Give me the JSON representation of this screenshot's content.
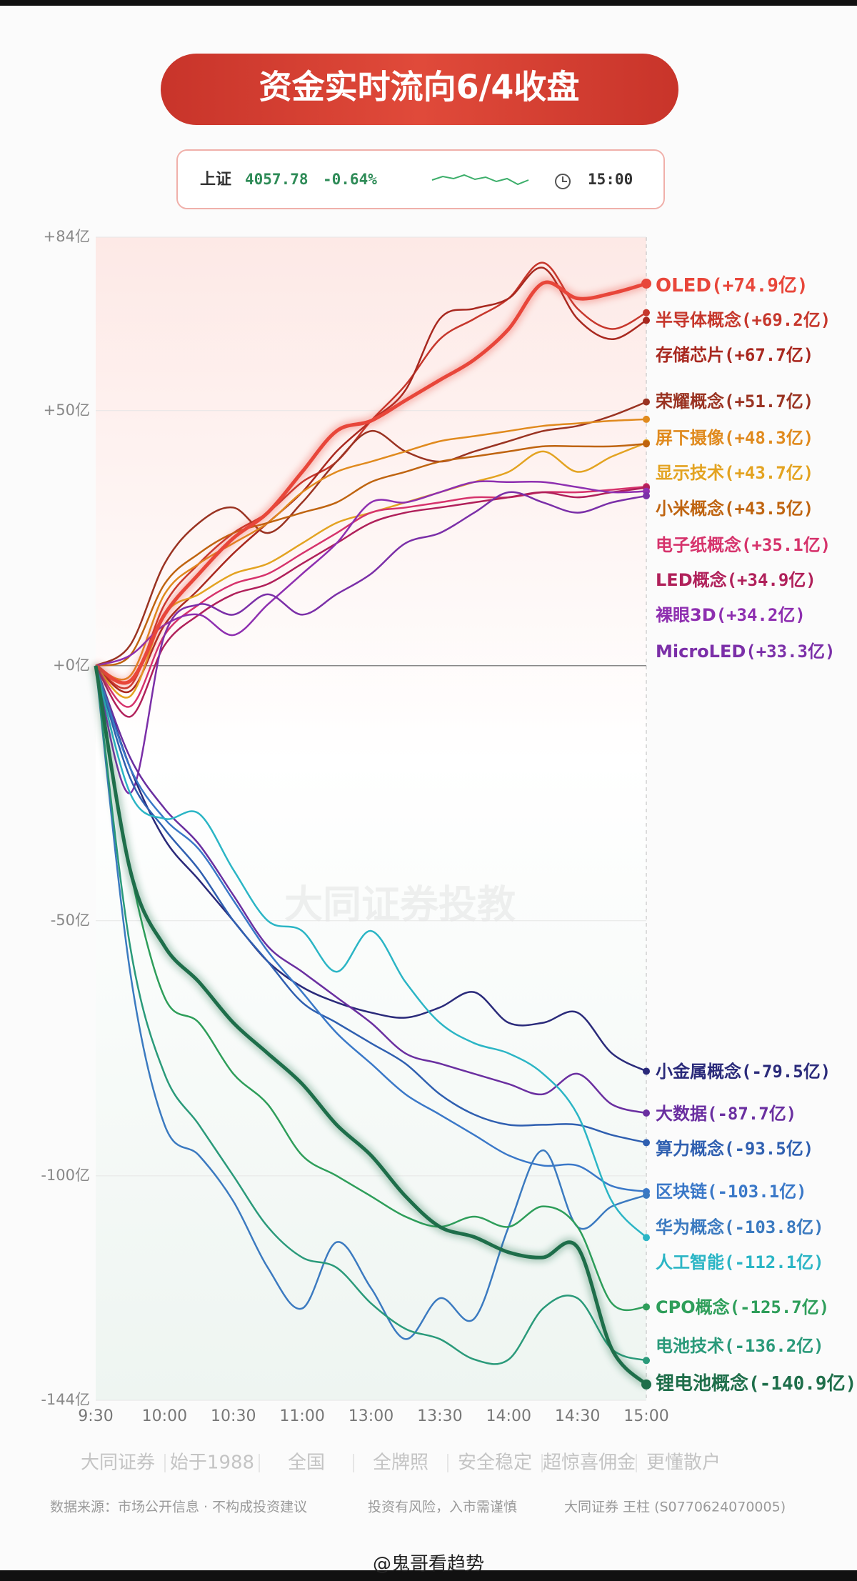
{
  "header": {
    "title": "资金实时流向6/4收盘",
    "index_name": "上证",
    "index_value": "4057.78",
    "index_change": "-0.64%",
    "time": "15:00"
  },
  "chart_data": {
    "type": "line",
    "categories": [
      "9:30",
      null,
      "10:00",
      null,
      "10:30",
      null,
      "11:00",
      null,
      "13:00",
      null,
      "13:30",
      null,
      "14:00",
      null,
      "14:30",
      null,
      "15:00"
    ],
    "ylim": [
      -144,
      84
    ],
    "yticks": [
      {
        "value": 84,
        "label": "+84亿"
      },
      {
        "value": 50,
        "label": "+50亿"
      },
      {
        "value": 0,
        "label": "+0亿"
      },
      {
        "value": -50,
        "label": "-50亿"
      },
      {
        "value": -100,
        "label": "-100亿"
      },
      {
        "value": -144,
        "label": "-144亿"
      }
    ],
    "grid": true,
    "series": [
      {
        "name": "OLED",
        "color": "#e8463a",
        "highlight": true,
        "values": [
          0,
          -3,
          10,
          18,
          25,
          30,
          38,
          46,
          48,
          52,
          56,
          60,
          66,
          75,
          72,
          73,
          74.9
        ],
        "value_labels": [
          null,
          null,
          null,
          null,
          null,
          null,
          null,
          null,
          null,
          null,
          null,
          null,
          null,
          null,
          null,
          null,
          "(+74.9亿)"
        ]
      },
      {
        "name": "半导体概念",
        "color": "#c6372c",
        "values": [
          0,
          -4,
          12,
          20,
          26,
          30,
          36,
          40,
          48,
          55,
          64,
          68,
          72,
          79,
          70,
          66,
          69.2
        ],
        "value_labels": [
          null,
          null,
          null,
          null,
          null,
          null,
          null,
          null,
          null,
          null,
          null,
          null,
          null,
          null,
          null,
          null,
          "(+69.2亿)"
        ]
      },
      {
        "name": "存储芯片",
        "color": "#a8281f",
        "values": [
          0,
          -5,
          8,
          15,
          22,
          28,
          34,
          42,
          48,
          54,
          68,
          70,
          72,
          78,
          68,
          64,
          67.7
        ],
        "value_labels": [
          null,
          null,
          null,
          null,
          null,
          null,
          null,
          null,
          null,
          null,
          null,
          null,
          null,
          null,
          null,
          null,
          "(+67.7亿)"
        ]
      },
      {
        "name": "荣耀概念",
        "color": "#9a3322",
        "values": [
          0,
          4,
          20,
          28,
          31,
          26,
          32,
          40,
          46,
          42,
          40,
          42,
          44,
          46,
          47,
          49,
          51.7
        ],
        "value_labels": [
          null,
          null,
          null,
          null,
          null,
          null,
          null,
          null,
          null,
          null,
          null,
          null,
          null,
          null,
          null,
          null,
          "(+51.7亿)"
        ]
      },
      {
        "name": "屏下摄像",
        "color": "#e08a1e",
        "values": [
          0,
          -2,
          14,
          20,
          24,
          28,
          34,
          38,
          40,
          42,
          44,
          45,
          46,
          47,
          47.5,
          48,
          48.3
        ],
        "value_labels": [
          null,
          null,
          null,
          null,
          null,
          null,
          null,
          null,
          null,
          null,
          null,
          null,
          null,
          null,
          null,
          null,
          "(+48.3亿)"
        ]
      },
      {
        "name": "显示技术",
        "color": "#e3a321",
        "values": [
          0,
          -6,
          10,
          14,
          18,
          20,
          24,
          28,
          30,
          32,
          34,
          36,
          38,
          42,
          38,
          41,
          43.7
        ],
        "value_labels": [
          null,
          null,
          null,
          null,
          null,
          null,
          null,
          null,
          null,
          null,
          null,
          null,
          null,
          null,
          null,
          null,
          "(+43.7亿)"
        ]
      },
      {
        "name": "小米概念",
        "color": "#bf6410",
        "values": [
          0,
          2,
          16,
          22,
          26,
          28,
          30,
          32,
          36,
          38,
          40,
          41,
          42,
          43,
          43,
          43,
          43.5
        ],
        "value_labels": [
          null,
          null,
          null,
          null,
          null,
          null,
          null,
          null,
          null,
          null,
          null,
          null,
          null,
          null,
          null,
          null,
          "(+43.5亿)"
        ]
      },
      {
        "name": "电子纸概念",
        "color": "#d6336c",
        "values": [
          0,
          -8,
          6,
          12,
          16,
          18,
          22,
          26,
          30,
          31,
          32,
          33,
          33,
          34,
          34,
          34.5,
          35.1
        ],
        "value_labels": [
          null,
          null,
          null,
          null,
          null,
          null,
          null,
          null,
          null,
          null,
          null,
          null,
          null,
          null,
          null,
          null,
          "(+35.1亿)"
        ]
      },
      {
        "name": "LED概念",
        "color": "#b0205a",
        "values": [
          0,
          -10,
          4,
          10,
          14,
          16,
          20,
          24,
          28,
          30,
          31,
          32,
          33,
          34,
          33,
          34,
          34.9
        ],
        "value_labels": [
          null,
          null,
          null,
          null,
          null,
          null,
          null,
          null,
          null,
          null,
          null,
          null,
          null,
          null,
          null,
          null,
          "(+34.9亿)"
        ]
      },
      {
        "name": "裸眼3D",
        "color": "#8e2fb0",
        "values": [
          0,
          2,
          8,
          10,
          6,
          12,
          18,
          24,
          32,
          32,
          34,
          36,
          36,
          36,
          35,
          34,
          34.2
        ],
        "value_labels": [
          null,
          null,
          null,
          null,
          null,
          null,
          null,
          null,
          null,
          null,
          null,
          null,
          null,
          null,
          null,
          null,
          "(+34.2亿)"
        ]
      },
      {
        "name": "MicroLED",
        "color": "#7b2fa8",
        "values": [
          0,
          -25,
          6,
          12,
          10,
          14,
          10,
          14,
          18,
          24,
          26,
          30,
          34,
          32,
          30,
          32,
          33.3
        ],
        "value_labels": [
          null,
          null,
          null,
          null,
          null,
          null,
          null,
          null,
          null,
          null,
          null,
          null,
          null,
          null,
          null,
          null,
          "(+33.3亿)"
        ]
      },
      {
        "name": "小金属概念",
        "color": "#2a2a7a",
        "values": [
          0,
          -20,
          -34,
          -42,
          -50,
          -58,
          -63,
          -66,
          -68,
          -69,
          -67,
          -64,
          -70,
          -70,
          -68,
          -76,
          -79.5
        ],
        "value_labels": [
          null,
          null,
          null,
          null,
          null,
          null,
          null,
          null,
          null,
          null,
          null,
          null,
          null,
          null,
          null,
          null,
          "(-79.5亿)"
        ]
      },
      {
        "name": "大数据",
        "color": "#6a2fa0",
        "values": [
          0,
          -18,
          -28,
          -35,
          -45,
          -55,
          -60,
          -65,
          -70,
          -76,
          -78,
          -80,
          -82,
          -84,
          -80,
          -86,
          -87.7
        ],
        "value_labels": [
          null,
          null,
          null,
          null,
          null,
          null,
          null,
          null,
          null,
          null,
          null,
          null,
          null,
          null,
          null,
          null,
          "(-87.7亿)"
        ]
      },
      {
        "name": "算力概念",
        "color": "#2f5fb0",
        "values": [
          0,
          -22,
          -32,
          -40,
          -50,
          -58,
          -66,
          -70,
          -74,
          -78,
          -84,
          -88,
          -90,
          -90,
          -90,
          -92,
          -93.5
        ],
        "value_labels": [
          null,
          null,
          null,
          null,
          null,
          null,
          null,
          null,
          null,
          null,
          null,
          null,
          null,
          null,
          null,
          null,
          "(-93.5亿)"
        ]
      },
      {
        "name": "区块链",
        "color": "#3a78c8",
        "values": [
          0,
          -20,
          -30,
          -36,
          -46,
          -56,
          -64,
          -72,
          -78,
          -84,
          -88,
          -92,
          -96,
          -98,
          -98,
          -102,
          -103.1
        ],
        "value_labels": [
          null,
          null,
          null,
          null,
          null,
          null,
          null,
          null,
          null,
          null,
          null,
          null,
          null,
          null,
          null,
          null,
          "(-103.1亿)"
        ]
      },
      {
        "name": "华为概念",
        "color": "#3b7ac0",
        "values": [
          0,
          -60,
          -90,
          -96,
          -105,
          -118,
          -126,
          -113,
          -122,
          -132,
          -124,
          -128,
          -110,
          -95,
          -110,
          -106,
          -103.8
        ],
        "value_labels": [
          null,
          null,
          null,
          null,
          null,
          null,
          null,
          null,
          null,
          null,
          null,
          null,
          null,
          null,
          null,
          null,
          "(-103.8亿)"
        ]
      },
      {
        "name": "人工智能",
        "color": "#2bb5c5",
        "values": [
          0,
          -25,
          -30,
          -29,
          -40,
          -50,
          -52,
          -60,
          -52,
          -62,
          -70,
          -74,
          -76,
          -80,
          -88,
          -105,
          -112.1
        ],
        "value_labels": [
          null,
          null,
          null,
          null,
          null,
          null,
          null,
          null,
          null,
          null,
          null,
          null,
          null,
          null,
          null,
          null,
          "(-112.1亿)"
        ]
      },
      {
        "name": "CPO概念",
        "color": "#2e9e5a",
        "values": [
          0,
          -40,
          -65,
          -70,
          -80,
          -86,
          -96,
          -100,
          -104,
          -108,
          -110,
          -108,
          -110,
          -106,
          -110,
          -125,
          -125.7
        ],
        "value_labels": [
          null,
          null,
          null,
          null,
          null,
          null,
          null,
          null,
          null,
          null,
          null,
          null,
          null,
          null,
          null,
          null,
          "(-125.7亿)"
        ]
      },
      {
        "name": "电池技术",
        "color": "#2a9a7a",
        "values": [
          0,
          -55,
          -80,
          -90,
          -100,
          -110,
          -116,
          -118,
          -125,
          -130,
          -132,
          -136,
          -136,
          -126,
          -124,
          -134,
          -136.2
        ],
        "value_labels": [
          null,
          null,
          null,
          null,
          null,
          null,
          null,
          null,
          null,
          null,
          null,
          null,
          null,
          null,
          null,
          null,
          "(-136.2亿)"
        ]
      },
      {
        "name": "锂电池概念",
        "color": "#1e6e4a",
        "highlight": true,
        "values": [
          0,
          -40,
          -55,
          -62,
          -70,
          -76,
          -82,
          -90,
          -96,
          -104,
          -110,
          -112,
          -115,
          -116,
          -114,
          -134,
          -140.9
        ],
        "value_labels": [
          null,
          null,
          null,
          null,
          null,
          null,
          null,
          null,
          null,
          null,
          null,
          null,
          null,
          null,
          null,
          null,
          "(-140.9亿)"
        ]
      }
    ]
  },
  "footer": {
    "brand": [
      "大同证券",
      "始于1988",
      "全国",
      "全牌照",
      "安全稳定",
      "超惊喜佣金",
      "更懂散户"
    ],
    "disclaimer": [
      "数据来源：市场公开信息 · 不构成投资建议",
      "投资有风险，入市需谨慎",
      "大同证券 王柱 (S0770624070005)"
    ],
    "watermark": "大同证券投教",
    "credit": "@鬼哥看趋势"
  }
}
